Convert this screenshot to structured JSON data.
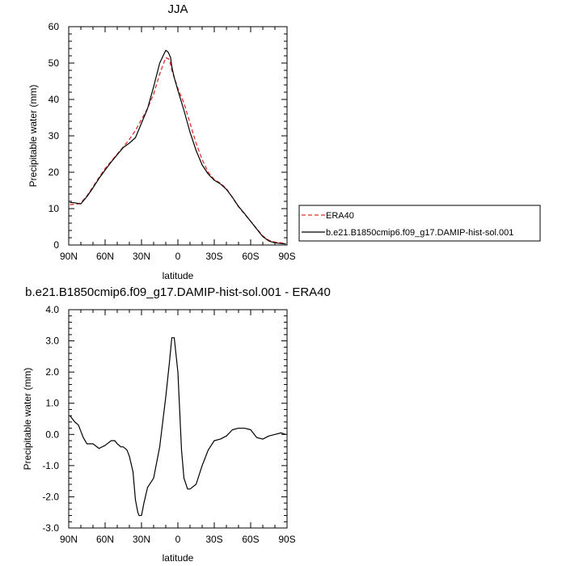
{
  "chart_data": [
    {
      "type": "line",
      "title": "JJA",
      "xlabel": "latitude",
      "ylabel": "Precipitable water (mm)",
      "xlim": [
        90,
        -90
      ],
      "ylim": [
        0,
        60
      ],
      "xticks": [
        90,
        60,
        30,
        0,
        -30,
        -60,
        -90
      ],
      "xtick_labels": [
        "90N",
        "60N",
        "30N",
        "0",
        "30S",
        "60S",
        "90S"
      ],
      "yticks": [
        0,
        10,
        20,
        30,
        40,
        50,
        60
      ],
      "ytick_labels": [
        "0",
        "10",
        "20",
        "30",
        "40",
        "50",
        "60"
      ],
      "legend_position": "outside-right",
      "series": [
        {
          "name": "ERA40",
          "color": "#e0302a",
          "dash": "dashed",
          "x": [
            89,
            85,
            82,
            80,
            75,
            70,
            65,
            60,
            55,
            50,
            45,
            40,
            35,
            30,
            25,
            20,
            15,
            10,
            7,
            5,
            3,
            0,
            -5,
            -10,
            -15,
            -20,
            -25,
            -30,
            -35,
            -40,
            -45,
            -50,
            -55,
            -60,
            -65,
            -70,
            -75,
            -80,
            -85,
            -89
          ],
          "y": [
            11.1,
            11.2,
            11.3,
            11.6,
            13.5,
            16.0,
            18.6,
            21.0,
            23.0,
            25.0,
            27.0,
            29.0,
            31.5,
            34.5,
            37.5,
            41.5,
            47.0,
            51.5,
            51.0,
            48.0,
            46.0,
            43.0,
            39.0,
            33.5,
            28.0,
            23.5,
            20.0,
            18.0,
            17.0,
            15.5,
            13.0,
            10.5,
            8.5,
            6.5,
            4.5,
            2.5,
            1.3,
            0.8,
            0.6,
            0.4
          ]
        },
        {
          "name": "b.e21.B1850cmip6.f09_g17.DAMIP-hist-sol.001",
          "color": "#000000",
          "dash": "solid",
          "x": [
            89,
            85,
            82,
            80,
            75,
            70,
            65,
            60,
            55,
            50,
            45,
            40,
            35,
            30,
            25,
            20,
            15,
            10,
            8,
            6,
            5,
            3,
            0,
            -5,
            -10,
            -15,
            -20,
            -25,
            -30,
            -35,
            -40,
            -45,
            -50,
            -55,
            -60,
            -65,
            -70,
            -75,
            -80,
            -85,
            -89
          ],
          "y": [
            11.7,
            11.6,
            11.4,
            11.3,
            13.3,
            15.7,
            18.3,
            20.6,
            22.8,
            24.8,
            26.8,
            28.0,
            29.5,
            33.5,
            37.5,
            43.5,
            50.0,
            53.5,
            53.0,
            51.5,
            49.0,
            46.0,
            42.5,
            37.0,
            31.0,
            26.0,
            22.0,
            19.5,
            17.8,
            16.8,
            15.3,
            13.1,
            10.6,
            8.6,
            6.5,
            4.4,
            2.3,
            1.1,
            0.6,
            0.4,
            0.3
          ]
        }
      ]
    },
    {
      "type": "line",
      "title": "b.e21.B1850cmip6.f09_g17.DAMIP-hist-sol.001 - ERA40",
      "xlabel": "latitude",
      "ylabel": "Precipitable water (mm)",
      "xlim": [
        90,
        -90
      ],
      "ylim": [
        -3,
        4
      ],
      "xticks": [
        90,
        60,
        30,
        0,
        -30,
        -60,
        -90
      ],
      "xtick_labels": [
        "90N",
        "60N",
        "30N",
        "0",
        "30S",
        "60S",
        "90S"
      ],
      "yticks": [
        -3,
        -2,
        -1,
        0,
        1,
        2,
        3,
        4
      ],
      "ytick_labels": [
        "-3.0",
        "-2.0",
        "-1.0",
        "0.0",
        "1.0",
        "2.0",
        "3.0",
        "4.0"
      ],
      "series": [
        {
          "color": "#000000",
          "dash": "solid",
          "x": [
            89,
            87,
            85,
            82,
            80,
            78,
            75,
            70,
            65,
            60,
            55,
            52,
            50,
            47,
            45,
            42,
            40,
            37,
            35,
            33,
            32,
            30,
            28,
            25,
            20,
            15,
            10,
            7,
            5,
            3,
            0,
            -3,
            -5,
            -8,
            -10,
            -15,
            -20,
            -25,
            -30,
            -35,
            -40,
            -45,
            -50,
            -55,
            -60,
            -65,
            -70,
            -75,
            -80,
            -85,
            -89
          ],
          "y": [
            0.6,
            0.5,
            0.4,
            0.3,
            0.1,
            -0.1,
            -0.3,
            -0.3,
            -0.45,
            -0.35,
            -0.2,
            -0.2,
            -0.3,
            -0.4,
            -0.4,
            -0.5,
            -0.7,
            -1.2,
            -2.1,
            -2.5,
            -2.6,
            -2.6,
            -2.2,
            -1.7,
            -1.4,
            -0.4,
            1.2,
            2.3,
            3.1,
            3.1,
            2.0,
            -0.5,
            -1.4,
            -1.75,
            -1.75,
            -1.6,
            -1.0,
            -0.5,
            -0.2,
            -0.15,
            -0.05,
            0.15,
            0.2,
            0.2,
            0.15,
            -0.1,
            -0.15,
            -0.05,
            0.0,
            0.05,
            0.0
          ]
        }
      ]
    }
  ]
}
